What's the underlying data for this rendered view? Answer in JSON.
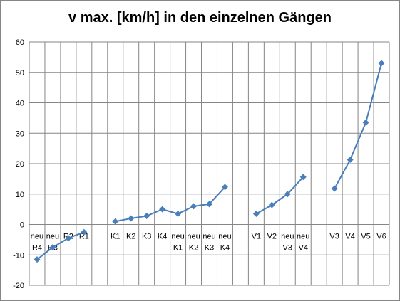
{
  "chart_data": {
    "type": "line",
    "title": "v max. [km/h] in den einzelnen Gängen",
    "ylim": [
      -20,
      60
    ],
    "yticks": [
      "-20",
      "-10",
      "0",
      "10",
      "20",
      "30",
      "40",
      "50",
      "60"
    ],
    "grid": true,
    "legend": "none",
    "line_color": "#4A7EBB",
    "categories": [
      [
        "neu",
        "R4"
      ],
      [
        "neu",
        "R3"
      ],
      [
        "R2"
      ],
      [
        "R1"
      ],
      [
        ""
      ],
      [
        "K1"
      ],
      [
        "K2"
      ],
      [
        "K3"
      ],
      [
        "K4"
      ],
      [
        "neu",
        "K1"
      ],
      [
        "neu",
        "K2"
      ],
      [
        "neu",
        "K3"
      ],
      [
        "neu",
        "K4"
      ],
      [
        ""
      ],
      [
        "V1"
      ],
      [
        "V2"
      ],
      [
        "neu",
        "V3"
      ],
      [
        "neu",
        "V4"
      ],
      [
        ""
      ],
      [
        "V3"
      ],
      [
        "V4"
      ],
      [
        "V5"
      ],
      [
        "V6"
      ]
    ],
    "series": [
      {
        "values": [
          -11.5,
          -7.5,
          -4.5,
          -2.5,
          null,
          1,
          2,
          2.8,
          5,
          3.5,
          6,
          6.7,
          12.3,
          null,
          3.5,
          6.4,
          10,
          15.6,
          null,
          11.8,
          21.3,
          33.5,
          53
        ]
      }
    ]
  }
}
